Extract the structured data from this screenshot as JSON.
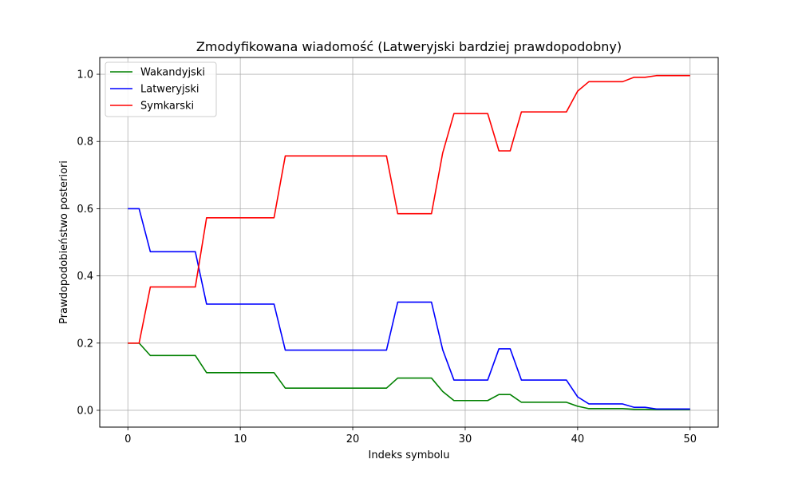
{
  "chart_data": {
    "type": "line",
    "title": "Zmodyfikowana wiadomość (Latweryjski bardziej prawdopodobny)",
    "xlabel": "Indeks symbolu",
    "ylabel": "Prawdopodobieństwo posteriori",
    "xlim": [
      -2.5,
      52.5
    ],
    "ylim": [
      -0.05,
      1.05
    ],
    "xticks": [
      0,
      10,
      20,
      30,
      40,
      50
    ],
    "yticks": [
      0.0,
      0.2,
      0.4,
      0.6,
      0.8,
      1.0
    ],
    "xtick_labels": [
      "0",
      "10",
      "20",
      "30",
      "40",
      "50"
    ],
    "ytick_labels": [
      "0.0",
      "0.2",
      "0.4",
      "0.6",
      "0.8",
      "1.0"
    ],
    "grid": true,
    "legend_position": "top-left",
    "x": [
      0,
      1,
      2,
      3,
      4,
      5,
      6,
      7,
      8,
      9,
      10,
      11,
      12,
      13,
      14,
      15,
      16,
      17,
      18,
      19,
      20,
      21,
      22,
      23,
      24,
      25,
      26,
      27,
      28,
      29,
      30,
      31,
      32,
      33,
      34,
      35,
      36,
      37,
      38,
      39,
      40,
      41,
      42,
      43,
      44,
      45,
      46,
      47,
      48,
      49,
      50
    ],
    "series": [
      {
        "name": "Wakandyjski",
        "color": "#008000",
        "values": [
          0.2,
          0.2,
          0.163,
          0.163,
          0.163,
          0.163,
          0.163,
          0.112,
          0.112,
          0.112,
          0.112,
          0.112,
          0.112,
          0.112,
          0.066,
          0.066,
          0.066,
          0.066,
          0.066,
          0.066,
          0.066,
          0.066,
          0.066,
          0.066,
          0.096,
          0.096,
          0.096,
          0.096,
          0.056,
          0.029,
          0.029,
          0.029,
          0.029,
          0.047,
          0.047,
          0.024,
          0.024,
          0.024,
          0.024,
          0.024,
          0.012,
          0.005,
          0.005,
          0.005,
          0.005,
          0.003,
          0.003,
          0.002,
          0.002,
          0.002,
          0.002
        ]
      },
      {
        "name": "Latweryjski",
        "color": "#0000ff",
        "values": [
          0.6,
          0.6,
          0.472,
          0.472,
          0.472,
          0.472,
          0.472,
          0.316,
          0.316,
          0.316,
          0.316,
          0.316,
          0.316,
          0.316,
          0.179,
          0.179,
          0.179,
          0.179,
          0.179,
          0.179,
          0.179,
          0.179,
          0.179,
          0.179,
          0.322,
          0.322,
          0.322,
          0.322,
          0.18,
          0.09,
          0.09,
          0.09,
          0.09,
          0.183,
          0.183,
          0.09,
          0.09,
          0.09,
          0.09,
          0.09,
          0.04,
          0.019,
          0.019,
          0.019,
          0.019,
          0.009,
          0.009,
          0.004,
          0.004,
          0.004,
          0.004
        ]
      },
      {
        "name": "Symkarski",
        "color": "#ff0000",
        "values": [
          0.2,
          0.2,
          0.367,
          0.367,
          0.367,
          0.367,
          0.367,
          0.573,
          0.573,
          0.573,
          0.573,
          0.573,
          0.573,
          0.573,
          0.757,
          0.757,
          0.757,
          0.757,
          0.757,
          0.757,
          0.757,
          0.757,
          0.757,
          0.757,
          0.585,
          0.585,
          0.585,
          0.585,
          0.766,
          0.883,
          0.883,
          0.883,
          0.883,
          0.772,
          0.772,
          0.888,
          0.888,
          0.888,
          0.888,
          0.888,
          0.95,
          0.978,
          0.978,
          0.978,
          0.978,
          0.991,
          0.991,
          0.996,
          0.996,
          0.996,
          0.996
        ]
      }
    ]
  }
}
